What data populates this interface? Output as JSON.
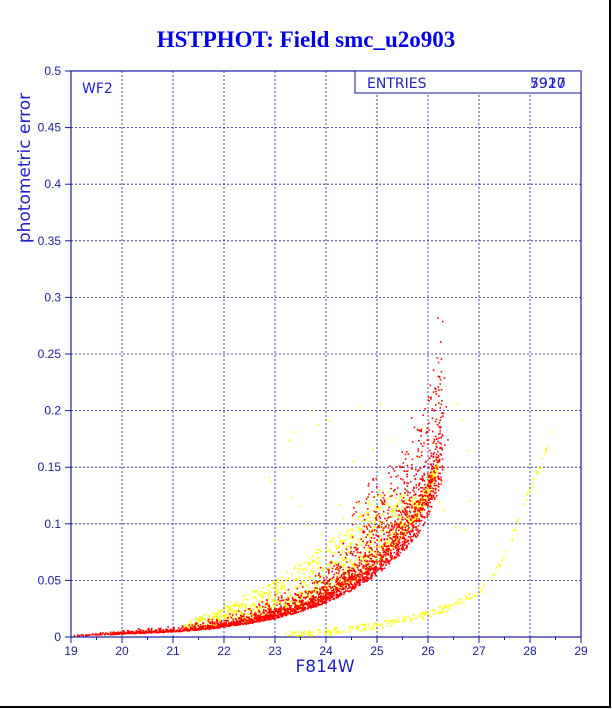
{
  "chart_data": {
    "type": "scatter",
    "title": "HSTPHOT: Field smc_u2o903",
    "xlabel": "F814W",
    "ylabel": "photometric error",
    "xlim": [
      19,
      29
    ],
    "ylim": [
      0,
      0.5
    ],
    "x_ticks": [
      "19",
      "20",
      "21",
      "22",
      "23",
      "24",
      "25",
      "26",
      "27",
      "28",
      "29"
    ],
    "y_ticks": [
      "0",
      "0.05",
      "0.1",
      "0.15",
      "0.2",
      "0.25",
      "0.3",
      "0.35",
      "0.4",
      "0.45",
      "0.5"
    ],
    "grid": true,
    "panel_label": "WF2",
    "legend": {
      "label": "ENTRIES",
      "value_overprinted": [
        "7927",
        "5910"
      ]
    },
    "series": [
      {
        "color": "#ff0000",
        "main_sequence_points": [
          [
            19.0,
            0.001
          ],
          [
            19.5,
            0.002
          ],
          [
            20.0,
            0.003
          ],
          [
            20.5,
            0.004
          ],
          [
            21.0,
            0.005
          ],
          [
            21.5,
            0.007
          ],
          [
            22.0,
            0.01
          ],
          [
            22.5,
            0.014
          ],
          [
            23.0,
            0.019
          ],
          [
            23.5,
            0.026
          ],
          [
            24.0,
            0.035
          ],
          [
            24.5,
            0.048
          ],
          [
            25.0,
            0.064
          ],
          [
            25.5,
            0.087
          ],
          [
            25.8,
            0.105
          ],
          [
            26.0,
            0.125
          ],
          [
            26.2,
            0.15
          ],
          [
            26.3,
            0.165
          ]
        ]
      },
      {
        "color": "#ffff00",
        "main_sequence_points": [
          [
            21.5,
            0.012
          ],
          [
            22.0,
            0.025
          ],
          [
            22.5,
            0.035
          ],
          [
            23.0,
            0.045
          ],
          [
            23.5,
            0.06
          ],
          [
            24.0,
            0.075
          ],
          [
            24.5,
            0.09
          ],
          [
            25.0,
            0.12
          ]
        ],
        "secondary_branch_points": [
          [
            23.0,
            0.001
          ],
          [
            24.0,
            0.004
          ],
          [
            25.0,
            0.01
          ],
          [
            26.0,
            0.02
          ],
          [
            26.5,
            0.028
          ],
          [
            27.0,
            0.04
          ],
          [
            27.3,
            0.055
          ],
          [
            27.6,
            0.08
          ],
          [
            27.9,
            0.12
          ],
          [
            28.2,
            0.15
          ],
          [
            28.45,
            0.185
          ]
        ]
      }
    ]
  }
}
